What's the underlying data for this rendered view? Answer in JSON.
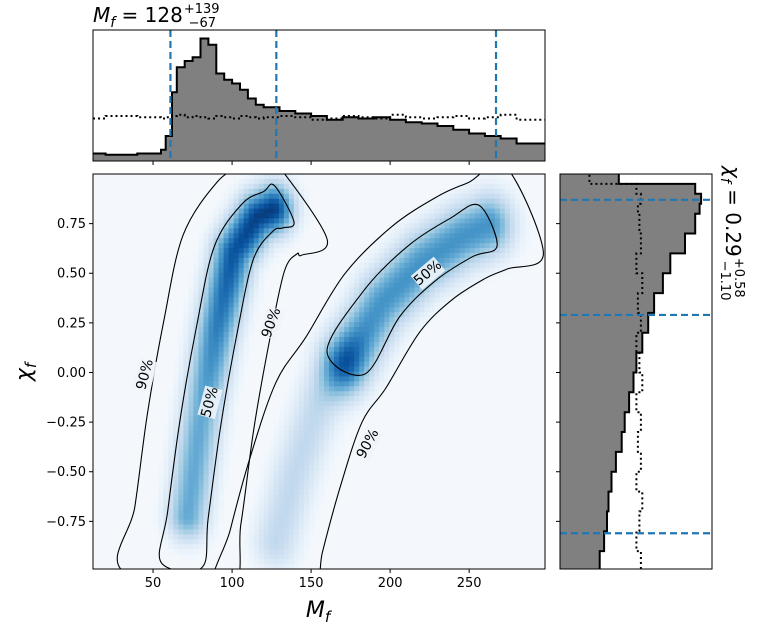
{
  "chart_data": {
    "type": "heatmap",
    "main": {
      "xlabel": "M_f",
      "ylabel": "χ_f",
      "xlim": [
        12,
        298
      ],
      "ylim": [
        -0.99,
        1.0
      ],
      "x_ticks": [
        50,
        100,
        150,
        200,
        250
      ],
      "y_ticks": [
        0.75,
        0.5,
        0.25,
        0.0,
        -0.25,
        -0.5,
        -0.75
      ],
      "x_tick_labels": [
        "50",
        "100",
        "150",
        "200",
        "250"
      ],
      "y_tick_labels": [
        "0.75",
        "0.50",
        "0.25",
        "0.00",
        "−0.25",
        "−0.50",
        "−0.75"
      ],
      "colormap": "Blues",
      "density_modes": [
        {
          "path": [
            [
              72,
              -0.72
            ],
            [
              80,
              -0.25
            ],
            [
              90,
              0.2
            ],
            [
              101,
              0.6
            ],
            [
              116,
              0.78
            ],
            [
              126,
              0.82
            ]
          ],
          "width_x": 9,
          "peak": 1.0
        },
        {
          "path": [
            [
              172,
              0.05
            ],
            [
              195,
              0.35
            ],
            [
              220,
              0.55
            ],
            [
              245,
              0.68
            ],
            [
              262,
              0.74
            ]
          ],
          "width_x": 11,
          "peak": 0.65
        },
        {
          "path": [
            [
              128,
              -0.85
            ],
            [
              140,
              -0.5
            ],
            [
              155,
              -0.15
            ],
            [
              172,
              0.05
            ]
          ],
          "width_x": 10,
          "peak": 0.28
        }
      ],
      "contour_labels": [
        {
          "text": "90%",
          "x": 45,
          "y": -0.01,
          "angle": -75
        },
        {
          "text": "50%",
          "x": 86,
          "y": -0.15,
          "angle": -75
        },
        {
          "text": "90%",
          "x": 125,
          "y": 0.25,
          "angle": -70
        },
        {
          "text": "90%",
          "x": 186,
          "y": -0.36,
          "angle": -62
        },
        {
          "text": "50%",
          "x": 224,
          "y": 0.5,
          "angle": -40
        }
      ]
    },
    "top_hist": {
      "param": "M_f",
      "title_main": "M",
      "title_sub": "f",
      "title_eq": " = 128",
      "title_plus": "+139",
      "title_minus": "−67",
      "bins_x": [
        12,
        20,
        40,
        55,
        58,
        62,
        65,
        70,
        75,
        80,
        85,
        90,
        95,
        100,
        105,
        110,
        115,
        120,
        130,
        140,
        150,
        160,
        170,
        180,
        190,
        200,
        210,
        220,
        230,
        240,
        250,
        260,
        270,
        280,
        298
      ],
      "posterior": [
        0.06,
        0.05,
        0.06,
        0.09,
        0.2,
        0.55,
        0.75,
        0.8,
        0.83,
        0.98,
        0.93,
        0.7,
        0.65,
        0.62,
        0.57,
        0.5,
        0.45,
        0.43,
        0.4,
        0.38,
        0.36,
        0.33,
        0.35,
        0.34,
        0.35,
        0.33,
        0.31,
        0.3,
        0.28,
        0.25,
        0.22,
        0.2,
        0.18,
        0.14
      ],
      "prior": [
        0.34,
        0.36,
        0.35,
        0.34,
        0.35,
        0.36,
        0.37,
        0.35,
        0.36,
        0.35,
        0.34,
        0.36,
        0.35,
        0.34,
        0.36,
        0.35,
        0.34,
        0.35,
        0.36,
        0.35,
        0.33,
        0.34,
        0.36,
        0.35,
        0.34,
        0.37,
        0.35,
        0.34,
        0.35,
        0.36,
        0.34,
        0.35,
        0.37,
        0.33
      ],
      "quantiles": [
        61,
        128,
        267
      ]
    },
    "right_hist": {
      "param": "χ_f",
      "label_main": "χ",
      "label_sub": "f",
      "label_eq": " = 0.29",
      "label_plus": "+0.58",
      "label_minus": "−1.10",
      "bins_y": [
        -0.99,
        -0.9,
        -0.8,
        -0.7,
        -0.6,
        -0.5,
        -0.4,
        -0.3,
        -0.2,
        -0.1,
        0.0,
        0.1,
        0.2,
        0.3,
        0.4,
        0.5,
        0.6,
        0.7,
        0.8,
        0.85,
        0.9,
        0.95,
        1.0
      ],
      "posterior": [
        0.27,
        0.3,
        0.32,
        0.33,
        0.35,
        0.38,
        0.42,
        0.44,
        0.47,
        0.5,
        0.52,
        0.56,
        0.6,
        0.64,
        0.7,
        0.75,
        0.85,
        0.92,
        0.95,
        0.96,
        0.92,
        0.4
      ],
      "prior": [
        0.55,
        0.52,
        0.54,
        0.56,
        0.52,
        0.55,
        0.53,
        0.55,
        0.52,
        0.56,
        0.54,
        0.52,
        0.55,
        0.53,
        0.56,
        0.52,
        0.55,
        0.54,
        0.53,
        0.55,
        0.52,
        0.2
      ],
      "quantiles": [
        -0.81,
        0.29,
        0.87
      ]
    },
    "colors": {
      "hist_fill": "#808080",
      "quantile_line": "#1f77b4",
      "contour": "#000000"
    }
  }
}
